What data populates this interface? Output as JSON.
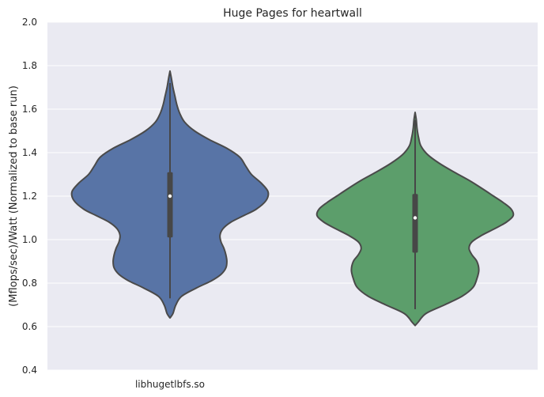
{
  "chart_data": {
    "type": "violin",
    "title": "Huge Pages for heartwall",
    "xlabel": "",
    "ylabel": "(Mflops/sec)/Watt (Normalized to base run)",
    "ylim": [
      0.4,
      2.0
    ],
    "yticks": [
      "0.4",
      "0.6",
      "0.8",
      "1.0",
      "1.2",
      "1.4",
      "1.6",
      "1.8",
      "2.0"
    ],
    "categories": [
      "libhugetlbfs.so",
      ""
    ],
    "grid": true,
    "series": [
      {
        "color": "#5874a6",
        "min": 0.73,
        "q1": 1.01,
        "median": 1.2,
        "q3": 1.31,
        "max": 1.72,
        "density": [
          [
            0.64,
            0.0
          ],
          [
            0.66,
            0.03
          ],
          [
            0.7,
            0.06
          ],
          [
            0.74,
            0.12
          ],
          [
            0.78,
            0.28
          ],
          [
            0.81,
            0.42
          ],
          [
            0.84,
            0.52
          ],
          [
            0.87,
            0.57
          ],
          [
            0.9,
            0.58
          ],
          [
            0.93,
            0.57
          ],
          [
            0.96,
            0.55
          ],
          [
            0.99,
            0.52
          ],
          [
            1.02,
            0.51
          ],
          [
            1.05,
            0.54
          ],
          [
            1.08,
            0.62
          ],
          [
            1.11,
            0.75
          ],
          [
            1.14,
            0.88
          ],
          [
            1.18,
            0.98
          ],
          [
            1.22,
            1.0
          ],
          [
            1.26,
            0.93
          ],
          [
            1.3,
            0.83
          ],
          [
            1.34,
            0.77
          ],
          [
            1.38,
            0.71
          ],
          [
            1.42,
            0.58
          ],
          [
            1.46,
            0.4
          ],
          [
            1.5,
            0.25
          ],
          [
            1.54,
            0.15
          ],
          [
            1.58,
            0.1
          ],
          [
            1.62,
            0.07
          ],
          [
            1.66,
            0.05
          ],
          [
            1.7,
            0.03
          ],
          [
            1.74,
            0.015
          ],
          [
            1.775,
            0.0
          ]
        ]
      },
      {
        "color": "#5c9e6b",
        "min": 0.68,
        "q1": 0.94,
        "median": 1.1,
        "q3": 1.21,
        "max": 1.55,
        "density": [
          [
            0.605,
            0.0
          ],
          [
            0.62,
            0.03
          ],
          [
            0.66,
            0.11
          ],
          [
            0.7,
            0.3
          ],
          [
            0.74,
            0.48
          ],
          [
            0.78,
            0.59
          ],
          [
            0.82,
            0.63
          ],
          [
            0.86,
            0.65
          ],
          [
            0.9,
            0.63
          ],
          [
            0.93,
            0.58
          ],
          [
            0.96,
            0.55
          ],
          [
            0.99,
            0.58
          ],
          [
            1.02,
            0.68
          ],
          [
            1.05,
            0.81
          ],
          [
            1.08,
            0.93
          ],
          [
            1.11,
            1.0
          ],
          [
            1.14,
            0.98
          ],
          [
            1.17,
            0.9
          ],
          [
            1.2,
            0.8
          ],
          [
            1.23,
            0.7
          ],
          [
            1.27,
            0.56
          ],
          [
            1.31,
            0.4
          ],
          [
            1.35,
            0.25
          ],
          [
            1.39,
            0.13
          ],
          [
            1.43,
            0.06
          ],
          [
            1.47,
            0.035
          ],
          [
            1.51,
            0.02
          ],
          [
            1.55,
            0.012
          ],
          [
            1.585,
            0.0
          ]
        ]
      }
    ]
  }
}
